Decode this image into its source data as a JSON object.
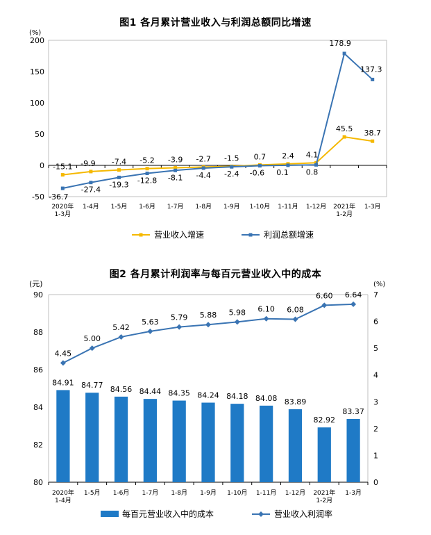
{
  "chart_data": [
    {
      "type": "line",
      "title": "图1  各月累计营业收入与利润总额同比增速",
      "y_unit": "(%)",
      "ylim": [
        -50,
        200
      ],
      "yticks": [
        "200",
        "150",
        "100",
        "50",
        "0",
        "-50"
      ],
      "grid": false,
      "legend_position": "bottom",
      "categories": [
        [
          "2020年",
          "1-3月"
        ],
        [
          "1-4月"
        ],
        [
          "1-5月"
        ],
        [
          "1-6月"
        ],
        [
          "1-7月"
        ],
        [
          "1-8月"
        ],
        [
          "1-9月"
        ],
        [
          "1-10月"
        ],
        [
          "1-11月"
        ],
        [
          "1-12月"
        ],
        [
          "2021年",
          "1-2月"
        ],
        [
          "1-3月"
        ]
      ],
      "series": [
        {
          "name": "营业收入增速",
          "color": "#f5b800",
          "values": [
            -15.1,
            -9.9,
            -7.4,
            -5.2,
            -3.9,
            -2.7,
            -1.5,
            0.7,
            2.4,
            4.1,
            45.5,
            38.7
          ],
          "labels": [
            "-15.1",
            "-9.9",
            "-7.4",
            "-5.2",
            "-3.9",
            "-2.7",
            "-1.5",
            "0.7",
            "2.4",
            "4.1",
            "45.5",
            "38.7"
          ]
        },
        {
          "name": "利润总额增速",
          "color": "#3a74b3",
          "values": [
            -36.7,
            -27.4,
            -19.3,
            -12.8,
            -8.1,
            -4.4,
            -2.4,
            -0.6,
            0.1,
            0.8,
            178.9,
            137.3
          ],
          "labels": [
            "-36.7",
            "-27.4",
            "-19.3",
            "-12.8",
            "-8.1",
            "-4.4",
            "-2.4",
            "-0.6",
            "0.1",
            "0.8",
            "178.9",
            "137.3"
          ]
        }
      ]
    },
    {
      "type": "bar",
      "title": "图2  各月累计利润率与每百元营业收入中的成本",
      "y_left_unit": "(元)",
      "y_right_unit": "(%)",
      "ylim_left": [
        80,
        90
      ],
      "ylim_right": [
        0,
        7
      ],
      "yticks_left": [
        "90",
        "88",
        "86",
        "84",
        "82",
        "80"
      ],
      "yticks_right": [
        "7",
        "6",
        "5",
        "4",
        "3",
        "2",
        "1",
        "0"
      ],
      "grid": false,
      "legend_position": "bottom",
      "categories": [
        [
          "2020年",
          "1-4月"
        ],
        [
          "1-5月"
        ],
        [
          "1-6月"
        ],
        [
          "1-7月"
        ],
        [
          "1-8月"
        ],
        [
          "1-9月"
        ],
        [
          "1-10月"
        ],
        [
          "1-11月"
        ],
        [
          "1-12月"
        ],
        [
          "2021年",
          "1-2月"
        ],
        [
          "1-3月"
        ]
      ],
      "series": [
        {
          "name": "每百元营业收入中的成本",
          "type": "bar",
          "axis": "left",
          "color": "#1f7ac6",
          "values": [
            84.91,
            84.77,
            84.56,
            84.44,
            84.35,
            84.24,
            84.18,
            84.08,
            83.89,
            82.92,
            83.37
          ],
          "labels": [
            "84.91",
            "84.77",
            "84.56",
            "84.44",
            "84.35",
            "84.24",
            "84.18",
            "84.08",
            "83.89",
            "82.92",
            "83.37"
          ]
        },
        {
          "name": "营业收入利润率",
          "type": "line",
          "axis": "right",
          "color": "#3a74b3",
          "values": [
            4.45,
            5.0,
            5.42,
            5.63,
            5.79,
            5.88,
            5.98,
            6.1,
            6.08,
            6.6,
            6.64
          ],
          "labels": [
            "4.45",
            "5.00",
            "5.42",
            "5.63",
            "5.79",
            "5.88",
            "5.98",
            "6.10",
            "6.08",
            "6.60",
            "6.64"
          ]
        }
      ]
    }
  ]
}
